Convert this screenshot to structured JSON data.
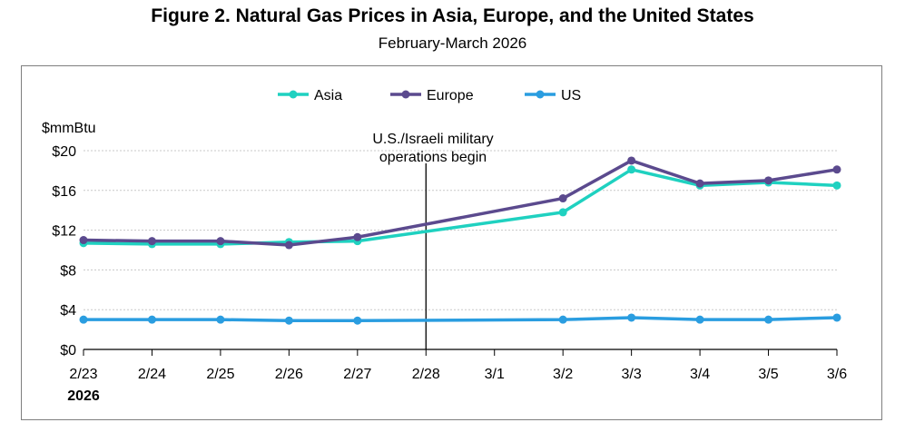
{
  "figure": {
    "title": "Figure 2. Natural Gas Prices in Asia, Europe, and the United States",
    "subtitle": "February-March 2026"
  },
  "chart_data": {
    "type": "line",
    "title": "Figure 2. Natural Gas Prices in Asia, Europe, and the United States",
    "subtitle": "February-March 2026",
    "ylabel": "$mmBtu",
    "xlabel": "",
    "year_label": "2026",
    "categories": [
      "2/23",
      "2/24",
      "2/25",
      "2/26",
      "2/27",
      "2/28",
      "3/1",
      "3/2",
      "3/3",
      "3/4",
      "3/5",
      "3/6"
    ],
    "ylim": [
      0,
      20
    ],
    "yticks": [
      0,
      4,
      8,
      12,
      16,
      20
    ],
    "ytick_labels": [
      "$0",
      "$4",
      "$8",
      "$12",
      "$16",
      "$20"
    ],
    "grid": true,
    "legend": "top-center",
    "series": [
      {
        "name": "Asia",
        "color": "#1fd1c0",
        "values": [
          10.7,
          10.6,
          10.6,
          10.8,
          10.9,
          null,
          null,
          13.8,
          18.1,
          16.5,
          16.8,
          16.5
        ]
      },
      {
        "name": "Europe",
        "color": "#5b4a8e",
        "values": [
          11.0,
          10.9,
          10.9,
          10.5,
          11.3,
          null,
          null,
          15.2,
          19.0,
          16.7,
          17.0,
          18.1
        ]
      },
      {
        "name": "US",
        "color": "#2a9de0",
        "values": [
          3.0,
          3.0,
          3.0,
          2.9,
          2.9,
          null,
          null,
          3.0,
          3.2,
          3.0,
          3.0,
          3.2
        ]
      }
    ],
    "annotation": {
      "text_line1": "U.S./Israeli military",
      "text_line2": "operations begin",
      "x_category": "2/28"
    }
  }
}
